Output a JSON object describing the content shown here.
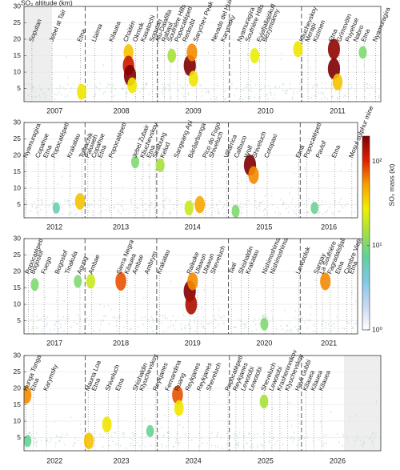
{
  "chart_data": [
    {
      "type": "heatmap",
      "ylabel": "SO₂ altitude (km)",
      "categories": [
        "2007",
        "2008",
        "2009",
        "2010",
        "2011"
      ],
      "xlim": [
        2007.15,
        2012.1
      ],
      "ylim": [
        1,
        30
      ],
      "yticks": [
        5,
        10,
        15,
        20,
        25,
        30
      ],
      "grid": true,
      "annotations": [
        {
          "label": "Soputan",
          "x": 2007.26
        },
        {
          "label": "Jebel at Tair",
          "x": 2007.54
        },
        {
          "label": "Etna",
          "x": 2007.93
        },
        {
          "label": "Llaima",
          "x": 2008.13
        },
        {
          "label": "Kilauea",
          "x": 2008.37
        },
        {
          "label": "Chaitén",
          "x": 2008.57
        },
        {
          "label": "Okmok",
          "x": 2008.7
        },
        {
          "label": "Kasatochi",
          "x": 2008.81
        },
        {
          "label": "Soputan",
          "x": 2008.93
        },
        {
          "label": "Alu-Dalafilla",
          "x": 2009.01
        },
        {
          "label": "Rabaul",
          "x": 2009.1
        },
        {
          "label": "Soufrière Hills",
          "x": 2009.18
        },
        {
          "label": "Popocatépetl",
          "x": 2009.28
        },
        {
          "label": "Redoubt",
          "x": 2009.39
        },
        {
          "label": "Sarychev Peak",
          "x": 2009.54
        },
        {
          "label": "Nevado del Huila",
          "x": 2009.79
        },
        {
          "label": "Karymsky",
          "x": 2009.92
        },
        {
          "label": "Nyamuragira",
          "x": 2010.15
        },
        {
          "label": "Soufrière Hills",
          "x": 2010.26
        },
        {
          "label": "Eyjafjallajökull",
          "x": 2010.42
        },
        {
          "label": "Bezymianny",
          "x": 2010.5
        },
        {
          "label": "Kliuchevskoy",
          "x": 2011.01
        },
        {
          "label": "Merapi",
          "x": 2011.09
        },
        {
          "label": "Kizimen",
          "x": 2011.2
        },
        {
          "label": "Etna",
          "x": 2011.42
        },
        {
          "label": "Grímsvötn",
          "x": 2011.53
        },
        {
          "label": "Puyehue",
          "x": 2011.65
        },
        {
          "label": "Nabro",
          "x": 2011.76
        },
        {
          "label": "Etna",
          "x": 2011.87
        },
        {
          "label": "Nyamuragira",
          "x": 2012.03
        }
      ],
      "plumes": {
        "x": [
          2007.95,
          2008.6,
          2008.6,
          2008.62,
          2008.65,
          2009.2,
          2009.45,
          2009.48,
          2009.5,
          2010.35,
          2010.95,
          2011.45,
          2011.45,
          2011.5,
          2011.85
        ],
        "y": [
          4,
          16,
          12,
          9,
          6,
          15,
          12,
          16,
          8,
          15,
          17,
          17,
          11,
          7,
          16
        ],
        "values": [
          30,
          40,
          120,
          200,
          30,
          15,
          200,
          60,
          30,
          25,
          30,
          180,
          200,
          40,
          10
        ]
      }
    },
    {
      "type": "heatmap",
      "categories": [
        "2012",
        "2013",
        "2014",
        "2015",
        "2016"
      ],
      "xlim": [
        2012.15,
        2016.8
      ],
      "ylim": [
        1,
        30
      ],
      "yticks": [
        5,
        10,
        15,
        20,
        25,
        30
      ],
      "grid": true,
      "annotations": [
        {
          "label": "Nyamuragira",
          "x": 2012.18
        },
        {
          "label": "Copahue",
          "x": 2012.35
        },
        {
          "label": "Etna",
          "x": 2012.46
        },
        {
          "label": "Popocatépetl",
          "x": 2012.57
        },
        {
          "label": "Krakatau",
          "x": 2012.79
        },
        {
          "label": "Tolbachik",
          "x": 2012.96
        },
        {
          "label": "Paluweh",
          "x": 2013.04
        },
        {
          "label": "Copahue",
          "x": 2013.13
        },
        {
          "label": "Etna",
          "x": 2013.22
        },
        {
          "label": "Popocatépetl",
          "x": 2013.37
        },
        {
          "label": "Jebel Zubair",
          "x": 2013.7
        },
        {
          "label": "Kliuchevskoy",
          "x": 2013.81
        },
        {
          "label": "Etna",
          "x": 2013.9
        },
        {
          "label": "Sinabung",
          "x": 2013.98
        },
        {
          "label": "Kelud",
          "x": 2014.09
        },
        {
          "label": "Sangeang Api",
          "x": 2014.28
        },
        {
          "label": "Bárðarbunga",
          "x": 2014.48
        },
        {
          "label": "Pico do Fogo",
          "x": 2014.68
        },
        {
          "label": "Shiveluch",
          "x": 2014.77
        },
        {
          "label": "Villarrica",
          "x": 2014.98
        },
        {
          "label": "Calbuco",
          "x": 2015.12
        },
        {
          "label": "Wolf",
          "x": 2015.26
        },
        {
          "label": "Shiveluch",
          "x": 2015.37
        },
        {
          "label": "Cotopaxi",
          "x": 2015.54
        },
        {
          "label": "Etna",
          "x": 2015.98
        },
        {
          "label": "Popocatépetl",
          "x": 2016.09
        },
        {
          "label": "Pavlof",
          "x": 2016.26
        },
        {
          "label": "Etna",
          "x": 2016.48
        },
        {
          "label": "Mosul sulphur mine",
          "x": 2016.72
        }
      ],
      "plumes": {
        "x": [
          2012.6,
          2012.93,
          2013.7,
          2014.05,
          2014.45,
          2014.6,
          2015.1,
          2015.3,
          2015.35,
          2016.2
        ],
        "y": [
          4,
          6,
          18,
          17,
          4,
          5,
          3,
          17,
          14,
          4
        ],
        "values": [
          6,
          40,
          10,
          15,
          20,
          50,
          10,
          200,
          60,
          8
        ]
      },
      "colorbar": {
        "label": "SO₂ mass (kt)",
        "zlim": [
          1,
          200
        ],
        "ticks": [
          {
            "value": 1,
            "label": "10⁰"
          },
          {
            "value": 10,
            "label": "10¹"
          },
          {
            "value": 100,
            "label": "10²"
          }
        ],
        "colormap": [
          "#ffffff",
          "#c8d8f0",
          "#80c8e8",
          "#60d0a0",
          "#a0e040",
          "#f0f000",
          "#f8a000",
          "#e02000",
          "#800000"
        ]
      }
    },
    {
      "type": "heatmap",
      "categories": [
        "2017",
        "2018",
        "2019",
        "2020",
        "2021"
      ],
      "xlim": [
        2017.15,
        2021.8
      ],
      "ylim": [
        1,
        30
      ],
      "yticks": [
        5,
        10,
        15,
        20,
        25,
        30
      ],
      "grid": true,
      "annotations": [
        {
          "label": "Popocatépetl",
          "x": 2017.21
        },
        {
          "label": "Bogoslof",
          "x": 2017.28
        },
        {
          "label": "Fuego",
          "x": 2017.43
        },
        {
          "label": "Bogoslof",
          "x": 2017.62
        },
        {
          "label": "Tinakula",
          "x": 2017.76
        },
        {
          "label": "Agung",
          "x": 2017.93
        },
        {
          "label": "Ambae",
          "x": 2018.09
        },
        {
          "label": "Sierra Negra",
          "x": 2018.48
        },
        {
          "label": "Kilauea",
          "x": 2018.59
        },
        {
          "label": "Ambae",
          "x": 2018.7
        },
        {
          "label": "Ambrym",
          "x": 2018.87
        },
        {
          "label": "Krakatau",
          "x": 2019.04
        },
        {
          "label": "Raikoke",
          "x": 2019.46
        },
        {
          "label": "Ulawun",
          "x": 2019.57
        },
        {
          "label": "Ulawun",
          "x": 2019.68
        },
        {
          "label": "Sheveluch",
          "x": 2019.79
        },
        {
          "label": "Taal",
          "x": 2020.04
        },
        {
          "label": "Shishaldin",
          "x": 2020.18
        },
        {
          "label": "Krakatau",
          "x": 2020.28
        },
        {
          "label": "Nishinoshima",
          "x": 2020.51
        },
        {
          "label": "Nishinoshima",
          "x": 2020.62
        },
        {
          "label": "Lewotolok",
          "x": 2020.98
        },
        {
          "label": "Sangay",
          "x": 2021.23
        },
        {
          "label": "La Soufrière",
          "x": 2021.31
        },
        {
          "label": "Fagradalsfjall",
          "x": 2021.42
        },
        {
          "label": "Etna",
          "x": 2021.53
        },
        {
          "label": "Cumbre Vieja",
          "x": 2021.65
        },
        {
          "label": "Etna",
          "x": 2021.72
        }
      ],
      "plumes": {
        "x": [
          2017.3,
          2017.9,
          2018.08,
          2018.5,
          2019.46,
          2019.48,
          2019.5,
          2020.5,
          2021.35
        ],
        "y": [
          16,
          17,
          17,
          17,
          14,
          10,
          17,
          4,
          17
        ],
        "values": [
          10,
          10,
          20,
          80,
          200,
          150,
          60,
          10,
          60
        ]
      }
    },
    {
      "type": "heatmap",
      "categories": [
        "2022",
        "2023",
        "2024",
        "2025",
        "2026"
      ],
      "xlim": [
        2022.15,
        2027.1
      ],
      "ylim": [
        1,
        30
      ],
      "yticks": [
        5,
        10,
        15,
        20,
        25,
        30
      ],
      "grid": true,
      "annotations": [
        {
          "label": "Hunga Tonga",
          "x": 2022.18
        },
        {
          "label": "Etna",
          "x": 2022.28
        },
        {
          "label": "Karymsky",
          "x": 2022.46
        },
        {
          "label": "Mauna Loa",
          "x": 2023.04
        },
        {
          "label": "Etna",
          "x": 2023.13
        },
        {
          "label": "Shiveluch",
          "x": 2023.32
        },
        {
          "label": "Etna",
          "x": 2023.46
        },
        {
          "label": "Shishaldin",
          "x": 2023.7
        },
        {
          "label": "Klyuchevskoy",
          "x": 2023.79
        },
        {
          "label": "Reykjanes",
          "x": 2023.98
        },
        {
          "label": "Fernandina",
          "x": 2024.15
        },
        {
          "label": "Ruang",
          "x": 2024.28
        },
        {
          "label": "Reykjanes",
          "x": 2024.43
        },
        {
          "label": "Reykjanes",
          "x": 2024.59
        },
        {
          "label": "Sheveluch",
          "x": 2024.72
        },
        {
          "label": "Popocatépetl",
          "x": 2024.98
        },
        {
          "label": "Reykjanes",
          "x": 2025.09
        },
        {
          "label": "Lewotobi",
          "x": 2025.2
        },
        {
          "label": "Lewotobi",
          "x": 2025.31
        },
        {
          "label": "Sheveluch",
          "x": 2025.48
        },
        {
          "label": "Lewotobi",
          "x": 2025.59
        },
        {
          "label": "Krasheninnikov",
          "x": 2025.7
        },
        {
          "label": "Klyuchevskoy",
          "x": 2025.81
        },
        {
          "label": "Hayli Gubbi",
          "x": 2025.95
        },
        {
          "label": "Kilauea",
          "x": 2026.06
        },
        {
          "label": "Kilauea",
          "x": 2026.17
        },
        {
          "label": "Kilauea",
          "x": 2026.28
        }
      ],
      "plumes": {
        "x": [
          2022.18,
          2022.2,
          2023.05,
          2023.3,
          2023.9,
          2024.28,
          2024.3,
          2025.48
        ],
        "y": [
          18,
          4,
          4,
          9,
          7,
          18,
          14,
          16
        ],
        "values": [
          60,
          8,
          40,
          30,
          8,
          80,
          30,
          15
        ]
      }
    }
  ]
}
